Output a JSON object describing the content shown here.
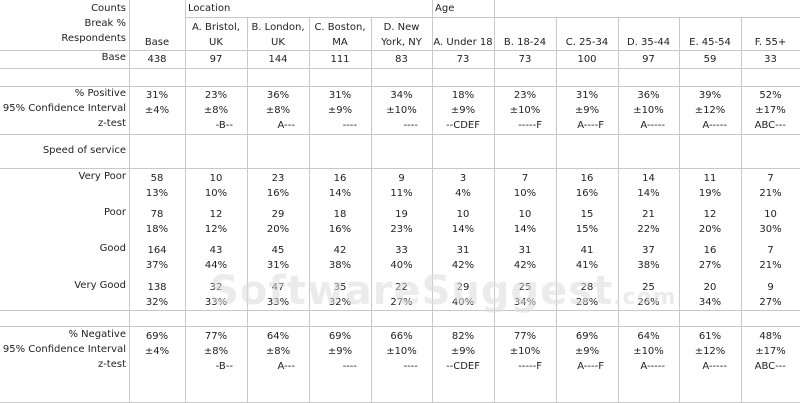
{
  "corner": {
    "line1": "Counts",
    "line2": "Break %",
    "line3": "Respondents"
  },
  "groups": {
    "location": "Location",
    "age": "Age"
  },
  "columns": [
    "Base",
    "A. Bristol, UK",
    "B. London, UK",
    "C. Boston, MA",
    "D. New York, NY",
    "A. Under 18",
    "B. 18-24",
    "C. 25-34",
    "D. 35-44",
    "E. 45-54",
    "F. 55+"
  ],
  "columns_wrapped": [
    [
      "Base",
      ""
    ],
    [
      "A. Bristol,",
      "UK"
    ],
    [
      "B. London,",
      "UK"
    ],
    [
      "C. Boston,",
      "MA"
    ],
    [
      "D. New",
      "York, NY"
    ],
    [
      "A. Under 18",
      ""
    ],
    [
      "B. 18-24",
      ""
    ],
    [
      "C. 25-34",
      ""
    ],
    [
      "D. 35-44",
      ""
    ],
    [
      "E. 45-54",
      ""
    ],
    [
      "F. 55+",
      ""
    ]
  ],
  "base_row": {
    "label": "Base",
    "values": [
      "438",
      "97",
      "144",
      "111",
      "83",
      "73",
      "73",
      "100",
      "97",
      "59",
      "33"
    ]
  },
  "positive": {
    "label": "% Positive",
    "ci_label": "95% Confidence Interval",
    "z_label": "z-test",
    "pct": [
      "31%",
      "23%",
      "36%",
      "31%",
      "34%",
      "18%",
      "23%",
      "31%",
      "36%",
      "39%",
      "52%"
    ],
    "ci": [
      "±4%",
      "±8%",
      "±8%",
      "±9%",
      "±10%",
      "±9%",
      "±10%",
      "±9%",
      "±10%",
      "±12%",
      "±17%"
    ],
    "z": [
      "",
      "-B--",
      "A---",
      "----",
      "----",
      "--CDEF",
      "-----F",
      "A----F",
      "A-----",
      "A-----",
      "ABC---"
    ]
  },
  "section_title": "Speed of service",
  "ratings": [
    {
      "label": "Very Poor",
      "counts": [
        "58",
        "10",
        "23",
        "16",
        "9",
        "3",
        "7",
        "16",
        "14",
        "11",
        "7"
      ],
      "pcts": [
        "13%",
        "10%",
        "16%",
        "14%",
        "11%",
        "4%",
        "10%",
        "16%",
        "14%",
        "19%",
        "21%"
      ]
    },
    {
      "label": "Poor",
      "counts": [
        "78",
        "12",
        "29",
        "18",
        "19",
        "10",
        "10",
        "15",
        "21",
        "12",
        "10"
      ],
      "pcts": [
        "18%",
        "12%",
        "20%",
        "16%",
        "23%",
        "14%",
        "14%",
        "15%",
        "22%",
        "20%",
        "30%"
      ]
    },
    {
      "label": "Good",
      "counts": [
        "164",
        "43",
        "45",
        "42",
        "33",
        "31",
        "31",
        "41",
        "37",
        "16",
        "7"
      ],
      "pcts": [
        "37%",
        "44%",
        "31%",
        "38%",
        "40%",
        "42%",
        "42%",
        "41%",
        "38%",
        "27%",
        "21%"
      ]
    },
    {
      "label": "Very Good",
      "counts": [
        "138",
        "32",
        "47",
        "35",
        "22",
        "29",
        "25",
        "28",
        "25",
        "20",
        "9"
      ],
      "pcts": [
        "32%",
        "33%",
        "33%",
        "32%",
        "27%",
        "40%",
        "34%",
        "28%",
        "26%",
        "34%",
        "27%"
      ]
    }
  ],
  "negative": {
    "label": "% Negative",
    "ci_label": "95% Confidence Interval",
    "z_label": "z-test",
    "pct": [
      "69%",
      "77%",
      "64%",
      "69%",
      "66%",
      "82%",
      "77%",
      "69%",
      "64%",
      "61%",
      "48%"
    ],
    "ci": [
      "±4%",
      "±8%",
      "±8%",
      "±9%",
      "±10%",
      "±9%",
      "±10%",
      "±9%",
      "±10%",
      "±12%",
      "±17%"
    ],
    "z": [
      "",
      "-B--",
      "A---",
      "----",
      "----",
      "--CDEF",
      "-----F",
      "A----F",
      "A-----",
      "A-----",
      "ABC---"
    ]
  },
  "watermark": {
    "main": "SoftwareSuggest",
    "suffix": ".com"
  }
}
